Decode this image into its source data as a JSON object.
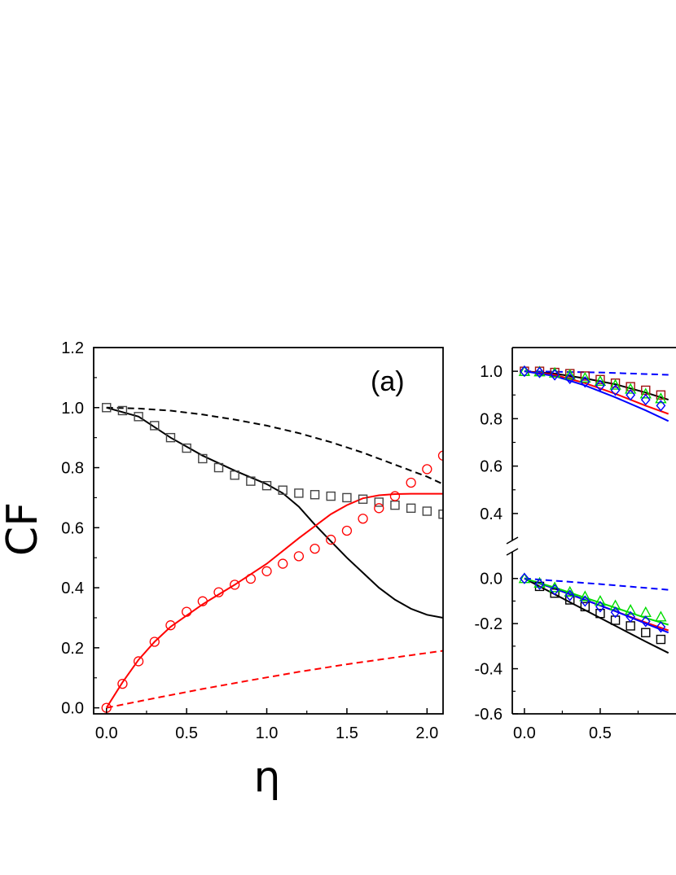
{
  "figure": {
    "ylabel": "CF",
    "xlabel": "η",
    "colors": {
      "black": "#000000",
      "red": "#ff0000",
      "gray": "#444444",
      "blue": "#0000ff",
      "green": "#00dd00",
      "darkred": "#a01010"
    }
  },
  "chart_data": [
    {
      "type": "line",
      "panel_label": "(a)",
      "xlim": [
        -0.08,
        2.1
      ],
      "ylim": [
        -0.02,
        1.2
      ],
      "xticks": [
        "0.0",
        "0.5",
        "1.0",
        "1.5",
        "2.0"
      ],
      "yticks": [
        "0.0",
        "0.2",
        "0.4",
        "0.6",
        "0.8",
        "1.0",
        "1.2"
      ],
      "series": [
        {
          "kind": "line",
          "style": "solid",
          "color": "#000000",
          "x": [
            0,
            0.2,
            0.4,
            0.6,
            0.8,
            1.0,
            1.1,
            1.2,
            1.3,
            1.4,
            1.5,
            1.6,
            1.7,
            1.8,
            1.9,
            2.0,
            2.1
          ],
          "y": [
            1.0,
            0.97,
            0.9,
            0.84,
            0.79,
            0.745,
            0.715,
            0.67,
            0.61,
            0.555,
            0.5,
            0.45,
            0.4,
            0.36,
            0.33,
            0.31,
            0.3
          ]
        },
        {
          "kind": "line",
          "style": "dashed",
          "color": "#000000",
          "x": [
            0,
            0.2,
            0.4,
            0.6,
            0.8,
            1.0,
            1.2,
            1.4,
            1.6,
            1.8,
            2.0,
            2.1
          ],
          "y": [
            1.0,
            0.997,
            0.99,
            0.977,
            0.96,
            0.94,
            0.915,
            0.885,
            0.85,
            0.81,
            0.77,
            0.745
          ]
        },
        {
          "kind": "line",
          "style": "solid",
          "color": "#ff0000",
          "x": [
            0,
            0.1,
            0.2,
            0.3,
            0.4,
            0.6,
            0.8,
            1.0,
            1.2,
            1.4,
            1.5,
            1.6,
            1.7,
            1.8,
            1.9,
            2.0,
            2.1
          ],
          "y": [
            0,
            0.085,
            0.16,
            0.22,
            0.27,
            0.345,
            0.41,
            0.48,
            0.565,
            0.645,
            0.675,
            0.698,
            0.708,
            0.712,
            0.713,
            0.713,
            0.713
          ]
        },
        {
          "kind": "line",
          "style": "dashed",
          "color": "#ff0000",
          "x": [
            0,
            0.3,
            0.6,
            0.9,
            1.2,
            1.5,
            1.8,
            2.1
          ],
          "y": [
            0,
            0.032,
            0.063,
            0.092,
            0.12,
            0.145,
            0.168,
            0.19
          ]
        },
        {
          "kind": "marker",
          "shape": "square",
          "color": "#444444",
          "x": [
            0,
            0.1,
            0.2,
            0.3,
            0.4,
            0.5,
            0.6,
            0.7,
            0.8,
            0.9,
            1.0,
            1.1,
            1.2,
            1.3,
            1.4,
            1.5,
            1.6,
            1.7,
            1.8,
            1.9,
            2.0,
            2.1
          ],
          "y": [
            1.0,
            0.99,
            0.97,
            0.94,
            0.9,
            0.865,
            0.83,
            0.8,
            0.775,
            0.755,
            0.74,
            0.725,
            0.715,
            0.71,
            0.705,
            0.7,
            0.695,
            0.685,
            0.675,
            0.665,
            0.655,
            0.645
          ]
        },
        {
          "kind": "marker",
          "shape": "circle",
          "color": "#ff0000",
          "x": [
            0,
            0.1,
            0.2,
            0.3,
            0.4,
            0.5,
            0.6,
            0.7,
            0.8,
            0.9,
            1.0,
            1.1,
            1.2,
            1.3,
            1.4,
            1.5,
            1.6,
            1.7,
            1.8,
            1.9,
            2.0,
            2.1
          ],
          "y": [
            0,
            0.08,
            0.155,
            0.22,
            0.275,
            0.32,
            0.355,
            0.385,
            0.41,
            0.43,
            0.455,
            0.48,
            0.505,
            0.53,
            0.56,
            0.59,
            0.63,
            0.665,
            0.705,
            0.75,
            0.795,
            0.84
          ]
        }
      ]
    },
    {
      "type": "line",
      "xlim": [
        -0.08,
        1.0
      ],
      "ylim": [
        -0.6,
        1.1
      ],
      "broken_axis": {
        "lower": [
          -0.6,
          0.1
        ],
        "upper": [
          0.3,
          1.1
        ]
      },
      "xticks": [
        "0.0",
        "0.5"
      ],
      "yticks": [
        "-0.6",
        "-0.4",
        "-0.2",
        "0.0",
        "0.4",
        "0.6",
        "0.8",
        "1.0"
      ],
      "series": [
        {
          "kind": "line",
          "style": "solid",
          "color": "#000000",
          "x": [
            0,
            0.2,
            0.4,
            0.6,
            0.8,
            0.95
          ],
          "y": [
            1.0,
            0.99,
            0.97,
            0.945,
            0.91,
            0.88
          ]
        },
        {
          "kind": "line",
          "style": "solid",
          "color": "#ff0000",
          "x": [
            0,
            0.2,
            0.4,
            0.6,
            0.8,
            0.95
          ],
          "y": [
            1.0,
            0.985,
            0.95,
            0.905,
            0.855,
            0.82
          ]
        },
        {
          "kind": "line",
          "style": "solid",
          "color": "#0000ff",
          "x": [
            0,
            0.2,
            0.4,
            0.6,
            0.8,
            0.95
          ],
          "y": [
            1.0,
            0.98,
            0.94,
            0.89,
            0.835,
            0.79
          ]
        },
        {
          "kind": "line",
          "style": "dashed",
          "color": "#0000ff",
          "x": [
            0,
            0.5,
            0.95
          ],
          "y": [
            1.0,
            0.995,
            0.985
          ]
        },
        {
          "kind": "marker",
          "shape": "square",
          "color": "#a01010",
          "x": [
            0,
            0.1,
            0.2,
            0.3,
            0.4,
            0.5,
            0.6,
            0.7,
            0.8,
            0.9
          ],
          "y": [
            1.0,
            1.0,
            0.995,
            0.99,
            0.98,
            0.965,
            0.95,
            0.935,
            0.92,
            0.9
          ]
        },
        {
          "kind": "marker",
          "shape": "triangle",
          "color": "#00dd00",
          "x": [
            0,
            0.1,
            0.2,
            0.3,
            0.4,
            0.5,
            0.6,
            0.7,
            0.8,
            0.9
          ],
          "y": [
            1.0,
            0.998,
            0.993,
            0.985,
            0.972,
            0.958,
            0.942,
            0.925,
            0.905,
            0.885
          ]
        },
        {
          "kind": "marker",
          "shape": "diamond",
          "color": "#0000ff",
          "x": [
            0,
            0.1,
            0.2,
            0.3,
            0.4,
            0.5,
            0.6,
            0.7,
            0.8,
            0.9
          ],
          "y": [
            1.0,
            0.995,
            0.985,
            0.97,
            0.955,
            0.94,
            0.92,
            0.9,
            0.88,
            0.855
          ]
        },
        {
          "kind": "line",
          "style": "solid",
          "color": "#000000",
          "x": [
            0,
            0.2,
            0.4,
            0.6,
            0.8,
            0.95
          ],
          "y": [
            0,
            -0.07,
            -0.14,
            -0.21,
            -0.28,
            -0.33
          ]
        },
        {
          "kind": "line",
          "style": "solid",
          "color": "#ff0000",
          "x": [
            0,
            0.2,
            0.4,
            0.6,
            0.8,
            0.95
          ],
          "y": [
            0,
            -0.045,
            -0.095,
            -0.145,
            -0.195,
            -0.23
          ]
        },
        {
          "kind": "line",
          "style": "solid",
          "color": "#0000ff",
          "x": [
            0,
            0.2,
            0.4,
            0.6,
            0.8,
            0.95
          ],
          "y": [
            0,
            -0.045,
            -0.095,
            -0.145,
            -0.2,
            -0.24
          ]
        },
        {
          "kind": "line",
          "style": "solid",
          "color": "#00dd00",
          "x": [
            0,
            0.2,
            0.4,
            0.6,
            0.8,
            0.95
          ],
          "y": [
            0,
            -0.04,
            -0.085,
            -0.13,
            -0.175,
            -0.205
          ]
        },
        {
          "kind": "line",
          "style": "dashed",
          "color": "#0000ff",
          "x": [
            0,
            0.5,
            0.95
          ],
          "y": [
            0,
            -0.025,
            -0.05
          ]
        },
        {
          "kind": "marker",
          "shape": "square",
          "color": "#000000",
          "x": [
            0.1,
            0.2,
            0.3,
            0.4,
            0.5,
            0.6,
            0.7,
            0.8,
            0.9
          ],
          "y": [
            -0.035,
            -0.065,
            -0.095,
            -0.125,
            -0.155,
            -0.185,
            -0.21,
            -0.24,
            -0.27
          ]
        },
        {
          "kind": "marker",
          "shape": "triangle",
          "color": "#00dd00",
          "x": [
            0,
            0.1,
            0.2,
            0.3,
            0.4,
            0.5,
            0.6,
            0.7,
            0.8,
            0.9
          ],
          "y": [
            0,
            -0.02,
            -0.04,
            -0.06,
            -0.08,
            -0.1,
            -0.12,
            -0.14,
            -0.15,
            -0.17
          ]
        },
        {
          "kind": "marker",
          "shape": "diamond",
          "color": "#0000ff",
          "x": [
            0,
            0.1,
            0.2,
            0.3,
            0.4,
            0.5,
            0.6,
            0.7,
            0.8,
            0.9
          ],
          "y": [
            0,
            -0.025,
            -0.05,
            -0.075,
            -0.1,
            -0.125,
            -0.15,
            -0.17,
            -0.19,
            -0.215
          ]
        }
      ]
    }
  ]
}
